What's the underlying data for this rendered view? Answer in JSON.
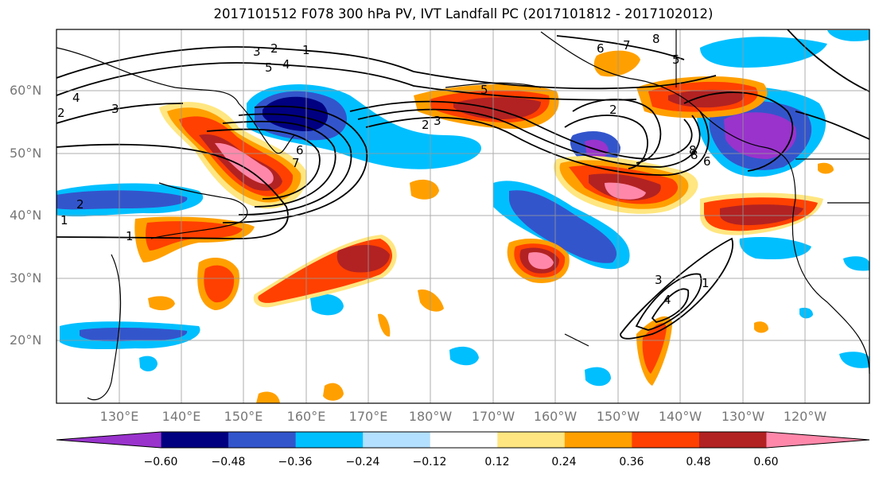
{
  "title": "2017101512 F078 300 hPa PV, IVT Landfall PC (2017101812 - 2017102012)",
  "lat_labels": [
    "60°N",
    "50°N",
    "40°N",
    "30°N",
    "20°N"
  ],
  "lon_labels": [
    "130°E",
    "140°E",
    "150°E",
    "160°E",
    "170°E",
    "180°W",
    "170°W",
    "160°W",
    "150°W",
    "140°W",
    "130°W",
    "120°W"
  ],
  "colorbar": {
    "labels": [
      "−0.60",
      "−0.48",
      "−0.36",
      "−0.24",
      "−0.12",
      "0.12",
      "0.24",
      "0.36",
      "0.48",
      "0.60"
    ],
    "colors": [
      "#9933cc",
      "#000080",
      "#3355cc",
      "#00bfff",
      "#b3e0ff",
      "#ffffff",
      "#ffe680",
      "#ffa000",
      "#ff4000",
      "#b22222",
      "#ff88aa"
    ]
  },
  "contour_labels": [
    "1",
    "2",
    "3",
    "4",
    "5",
    "6",
    "7",
    "8",
    "5",
    "4",
    "3",
    "2",
    "1",
    "2",
    "1",
    "5",
    "6",
    "7",
    "8",
    "6",
    "8",
    "2",
    "3",
    "1",
    "2",
    "3",
    "4"
  ]
}
